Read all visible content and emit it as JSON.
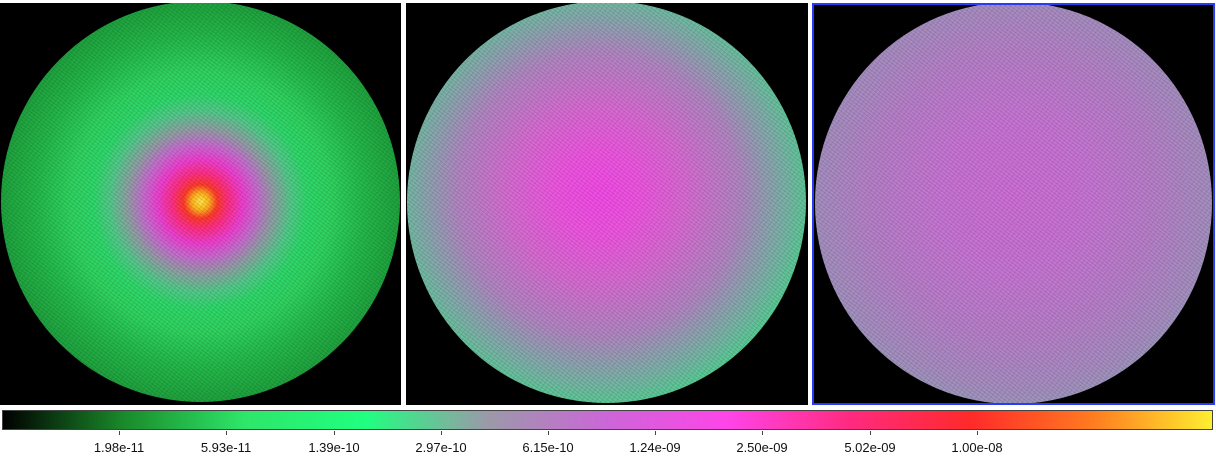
{
  "panels": [
    {
      "id": "frame-1",
      "selected": false,
      "center_color": "#ffe94a",
      "edge_color": "#116326"
    },
    {
      "id": "frame-2",
      "selected": false,
      "center_color": "#f24be6",
      "edge_color": "#2ef078"
    },
    {
      "id": "frame-3",
      "selected": true,
      "center_color": "#cd6ed6",
      "edge_color": "#4ad992"
    }
  ],
  "selection_color": "#2a3bf5",
  "colorbar": {
    "scale": "log",
    "colormap_stops": [
      "#000000",
      "#1a8a2a",
      "#2ee66a",
      "#20ff80",
      "#9a9aa8",
      "#cc66d8",
      "#ff44e8",
      "#ff2a80",
      "#ff2a2a",
      "#ff7a20",
      "#ffee30"
    ],
    "tick_labels": [
      "1.98e-11",
      "5.93e-11",
      "1.39e-10",
      "2.97e-10",
      "6.15e-10",
      "1.24e-09",
      "2.50e-09",
      "5.02e-09",
      "1.00e-08"
    ]
  }
}
